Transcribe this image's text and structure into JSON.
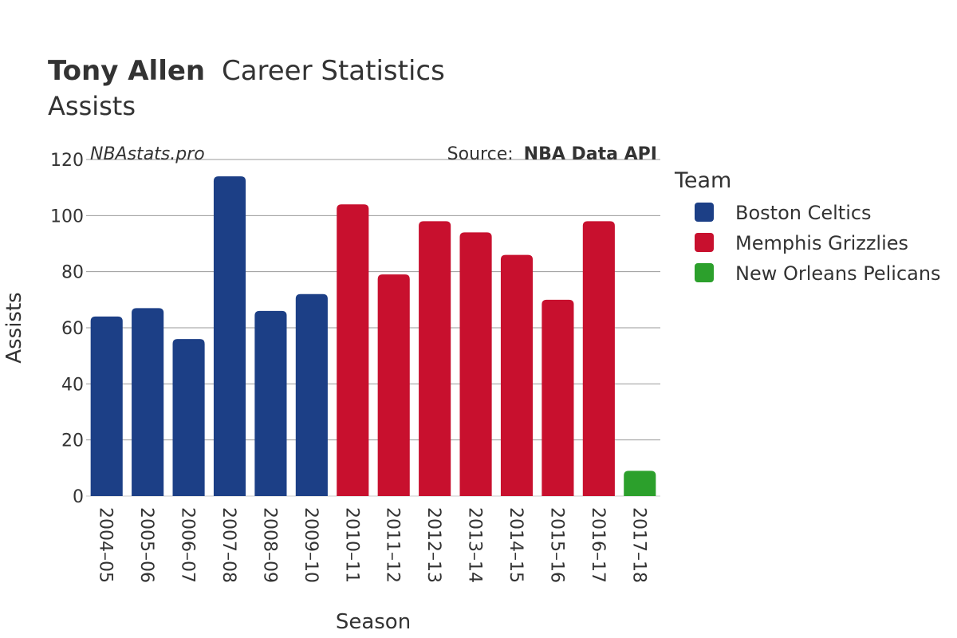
{
  "chart_data": {
    "type": "bar",
    "title_bold": "Tony Allen",
    "title_rest": "Career Statistics",
    "subtitle": "Assists",
    "watermark": "NBAstats.pro",
    "source_prefix": "Source:",
    "source_name": "NBA Data API",
    "xlabel": "Season",
    "ylabel": "Assists",
    "ylim": [
      0,
      120
    ],
    "yticks": [
      0,
      20,
      40,
      60,
      80,
      100,
      120
    ],
    "grid": true,
    "legend_title": "Team",
    "legend_position": "right",
    "teams": [
      {
        "name": "Boston Celtics",
        "color": "#1c3f86"
      },
      {
        "name": "Memphis Grizzlies",
        "color": "#c8102e"
      },
      {
        "name": "New Orleans Pelicans",
        "color": "#2ca02c"
      }
    ],
    "categories": [
      "2004–05",
      "2005–06",
      "2006–07",
      "2007–08",
      "2008–09",
      "2009–10",
      "2010–11",
      "2011–12",
      "2012–13",
      "2013–14",
      "2014–15",
      "2015–16",
      "2016–17",
      "2017–18"
    ],
    "values": [
      64,
      67,
      56,
      114,
      66,
      72,
      104,
      79,
      98,
      94,
      86,
      70,
      98,
      9
    ],
    "team_index": [
      0,
      0,
      0,
      0,
      0,
      0,
      1,
      1,
      1,
      1,
      1,
      1,
      1,
      2
    ]
  }
}
